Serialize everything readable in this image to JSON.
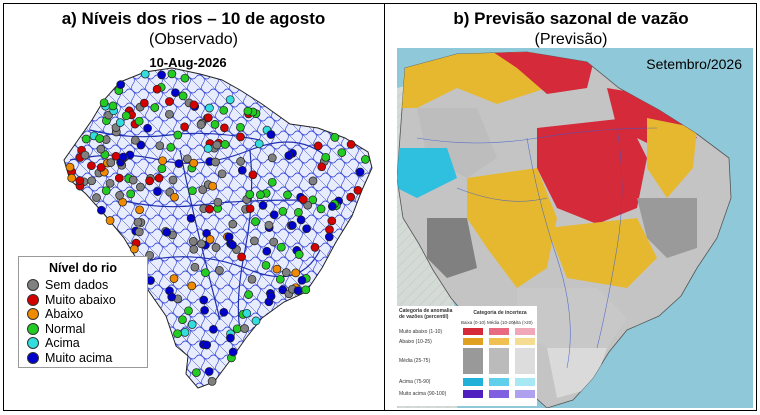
{
  "panel_a": {
    "title": "a)   Níveis dos rios – 10 de agosto",
    "subtitle": "(Observado)",
    "date": "10-Aug-2026",
    "legend": {
      "title": "Nível do rio",
      "items": [
        {
          "label": "Sem dados",
          "color": "#808080"
        },
        {
          "label": "Muito abaixo",
          "color": "#d40000"
        },
        {
          "label": "Abaixo",
          "color": "#f08a00"
        },
        {
          "label": "Normal",
          "color": "#22cc22"
        },
        {
          "label": "Acima",
          "color": "#33dddd"
        },
        {
          "label": "Muito acima",
          "color": "#0000cc"
        }
      ]
    }
  },
  "panel_b": {
    "title": "b)   Previsão sazonal de vazão",
    "subtitle": "(Previsão)",
    "month": "Setembro/2026",
    "legend": {
      "header_anomaly": "Categoria de anomalia de vazões (percentil)",
      "header_uncertainty": "Categoria de incerteza",
      "uncertainty_levels": [
        "Baixa (0-10)",
        "Média (10-20)",
        "Alta (>20)"
      ],
      "categories": [
        {
          "label": "Muito abaixo (1-10)",
          "colors": [
            "#d42a3a",
            "#e86a80",
            "#f0a8b8"
          ]
        },
        {
          "label": "Abaixo (10-25)",
          "colors": [
            "#e0a020",
            "#f0c050",
            "#f6dc90"
          ]
        },
        {
          "label": "Média (25-75)",
          "colors": [
            "#999999",
            "#bbbbbb",
            "#dddddd"
          ]
        },
        {
          "label": "Acima (75-90)",
          "colors": [
            "#20b0d8",
            "#60d0ea",
            "#a8e8f4"
          ]
        },
        {
          "label": "Muito acima (90-100)",
          "colors": [
            "#5020c0",
            "#8060e0",
            "#b0a0f0"
          ]
        }
      ]
    }
  }
}
